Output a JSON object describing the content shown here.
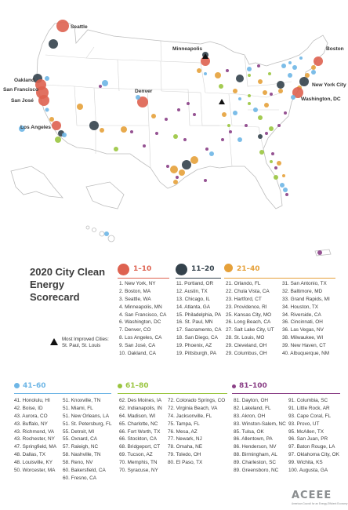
{
  "map": {
    "city_labels": [
      "Seattle",
      "Minneapolis",
      "Boston",
      "Oakland",
      "San Francisco",
      "San José",
      "Denver",
      "New York City",
      "Washington, DC",
      "Los Angeles"
    ],
    "colors": {
      "tier1": "#de6250",
      "tier2": "#34424c",
      "tier3": "#e6a13a",
      "tier4": "#6eb6e6",
      "tier5": "#9ac53f",
      "tier6": "#8a3f86",
      "land": "#ffffff",
      "border": "#c8c8c8",
      "water": "#ffffff"
    }
  },
  "title": {
    "line1": "2020 City Clean",
    "line2": "Energy Scorecard"
  },
  "legend": {
    "most_improved_label": "Most Improved Cities:",
    "most_improved_cities": "St. Paul, St. Louis"
  },
  "tiers": [
    {
      "label": "1–10",
      "color": "#de6250",
      "cols": [
        [
          "1. New York, NY",
          "2. Boston, MA",
          "3. Seattle, WA",
          "4. Minneapolis, MN",
          "4. San Francisco, CA",
          "6. Washington, DC",
          "7. Denver, CO",
          "8. Los Angeles, CA",
          "9. San José, CA",
          "10. Oakland, CA"
        ]
      ]
    },
    {
      "label": "11–20",
      "color": "#34424c",
      "cols": [
        [
          "11. Portland, OR",
          "12. Austin, TX",
          "13. Chicago, IL",
          "14. Atlanta, GA",
          "15. Philadelphia, PA",
          "16. St. Paul, MN",
          "17. Sacramento, CA",
          "18. San Diego, CA",
          "19. Phoenix, AZ",
          "19. Pittsburgh, PA"
        ]
      ]
    },
    {
      "label": "21–40",
      "color": "#e6a13a",
      "cols": [
        [
          "21. Orlando, FL",
          "22. Chula Vista, CA",
          "23. Hartford, CT",
          "23. Providence, RI",
          "25. Kansas City, MO",
          "26. Long Beach, CA",
          "27. Salt Lake City, UT",
          "28. St. Louis, MO",
          "29. Cleveland, OH",
          "29. Columbus, OH"
        ],
        [
          "31. San Antonio, TX",
          "32. Baltimore, MD",
          "33. Grand Rapids, MI",
          "34. Houston, TX",
          "34. Riverside, CA",
          "36. Cincinnati, OH",
          "36. Las Vegas, NV",
          "38. Milwaukee, WI",
          "39. New Haven, CT",
          "40. Albuquerque, NM"
        ]
      ]
    },
    {
      "label": "41–60",
      "color": "#6eb6e6",
      "cols": [
        [
          "41. Honolulu, HI",
          "42. Boise, ID",
          "43. Aurora, CO",
          "43. Buffalo, NY",
          "43. Richmond, VA",
          "43. Rochester, NY",
          "47. Springfield, MA",
          "48. Dallas, TX",
          "48. Louisville, KY",
          "50. Worcester, MA"
        ],
        [
          "51. Knoxville, TN",
          "51. Miami, FL",
          "51. New Orleans, LA",
          "51. St. Petersburg, FL",
          "55. Detroit, MI",
          "55. Oxnard, CA",
          "57. Raleigh, NC",
          "58. Nashville, TN",
          "58. Reno, NV",
          "60. Bakersfield, CA",
          "60. Fresno, CA"
        ]
      ]
    },
    {
      "label": "61–80",
      "color": "#9ac53f",
      "cols": [
        [
          "62. Des Moines, IA",
          "62. Indianapolis, IN",
          "64. Madison, WI",
          "65. Charlotte, NC",
          "66. Fort Worth, TX",
          "66. Stockton, CA",
          "68. Bridgeport, CT",
          "69. Tucson, AZ",
          "70. Memphis, TN",
          "70. Syracuse, NY"
        ],
        [
          "72. Colorado Springs, CO",
          "72. Virginia Beach, VA",
          "74. Jacksonville, FL",
          "75. Tampa, FL",
          "76. Mesa, AZ",
          "77. Newark, NJ",
          "78. Omaha, NE",
          "79. Toledo, OH",
          "80. El Paso, TX"
        ]
      ]
    },
    {
      "label": "81–100",
      "color": "#8a3f86",
      "cols": [
        [
          "81. Dayton, OH",
          "82. Lakeland, FL",
          "83. Akron, OH",
          "83. Winston-Salem, NC",
          "85. Tulsa, OK",
          "86. Allentown, PA",
          "86. Henderson, NV",
          "88. Birmingham, AL",
          "89. Charleston, SC",
          "89. Greensboro, NC"
        ],
        [
          "91. Columbia, SC",
          "91. Little Rock, AR",
          "93. Cape Coral, FL",
          "93. Provo, UT",
          "95. McAllen, TX",
          "96. San Juan, PR",
          "97. Baton Rouge, LA",
          "97. Oklahoma City, OK",
          "99. Wichita, KS",
          "100. Augusta, GA"
        ]
      ]
    }
  ],
  "logo": {
    "name": "ACEEE",
    "tagline": "American Council for an Energy-Efficient Economy"
  }
}
